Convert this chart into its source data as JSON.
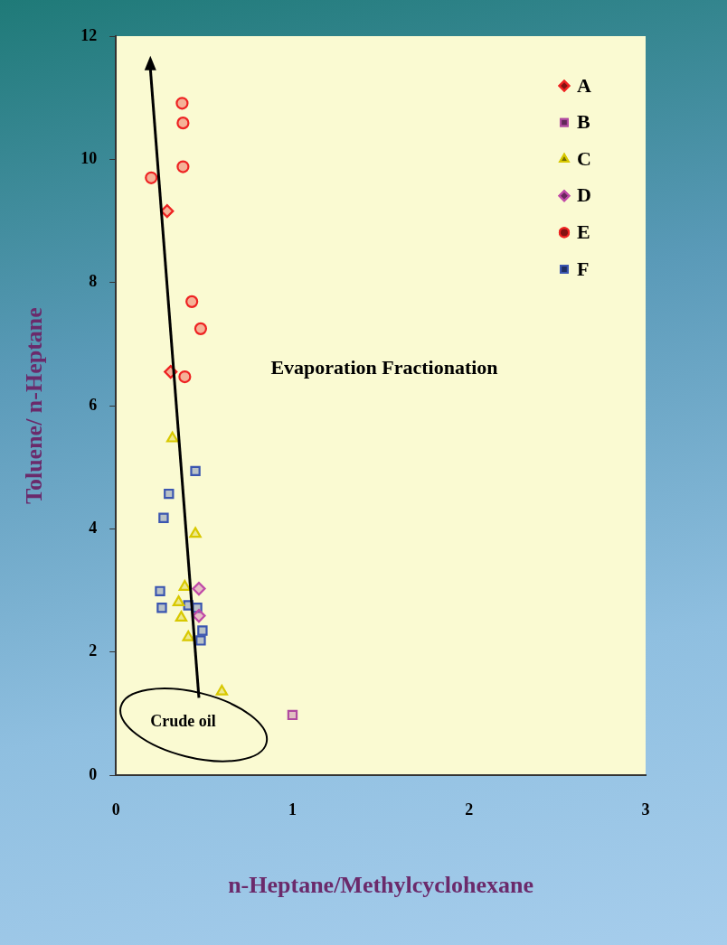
{
  "chart_data": {
    "type": "scatter",
    "xlabel": "n-Heptane/Methylcyclohexane",
    "ylabel": "Toluene/ n-Heptane",
    "xlim": [
      0,
      3
    ],
    "xticks": [
      0,
      1,
      2,
      3
    ],
    "ylim": [
      0,
      12
    ],
    "yticks": [
      0,
      2,
      4,
      6,
      8,
      10,
      12
    ],
    "grid": false,
    "legend": "top right",
    "series": [
      {
        "name": "A",
        "marker": "diamond",
        "color": "#ee2222",
        "x": [
          0.29,
          0.31
        ],
        "values": [
          9.16,
          6.55
        ]
      },
      {
        "name": "B",
        "marker": "square",
        "color": "#b04aa0",
        "x": [
          1.0
        ],
        "values": [
          0.98
        ]
      },
      {
        "name": "C",
        "marker": "triangle",
        "color": "#d8c800",
        "x": [
          0.32,
          0.45,
          0.39,
          0.355,
          0.37,
          0.41,
          0.6
        ],
        "values": [
          5.47,
          3.92,
          3.06,
          2.81,
          2.56,
          2.24,
          1.36
        ]
      },
      {
        "name": "D",
        "marker": "diamond",
        "color": "#c04aa8",
        "x": [
          0.47,
          0.47
        ],
        "values": [
          3.03,
          2.59
        ]
      },
      {
        "name": "E",
        "marker": "circle",
        "color": "#ee2222",
        "x": [
          0.375,
          0.38,
          0.38,
          0.2,
          0.43,
          0.48,
          0.39
        ],
        "values": [
          10.91,
          10.59,
          9.88,
          9.7,
          7.69,
          7.25,
          6.47
        ]
      },
      {
        "name": "F",
        "marker": "square",
        "color": "#3a55b0",
        "x": [
          0.45,
          0.3,
          0.27,
          0.25,
          0.26,
          0.41,
          0.46,
          0.49,
          0.48
        ],
        "values": [
          4.94,
          4.57,
          4.18,
          2.99,
          2.72,
          2.76,
          2.72,
          2.35,
          2.19
        ]
      }
    ],
    "annotations": [
      "Evaporation Fractionation",
      "Crude oil"
    ]
  }
}
